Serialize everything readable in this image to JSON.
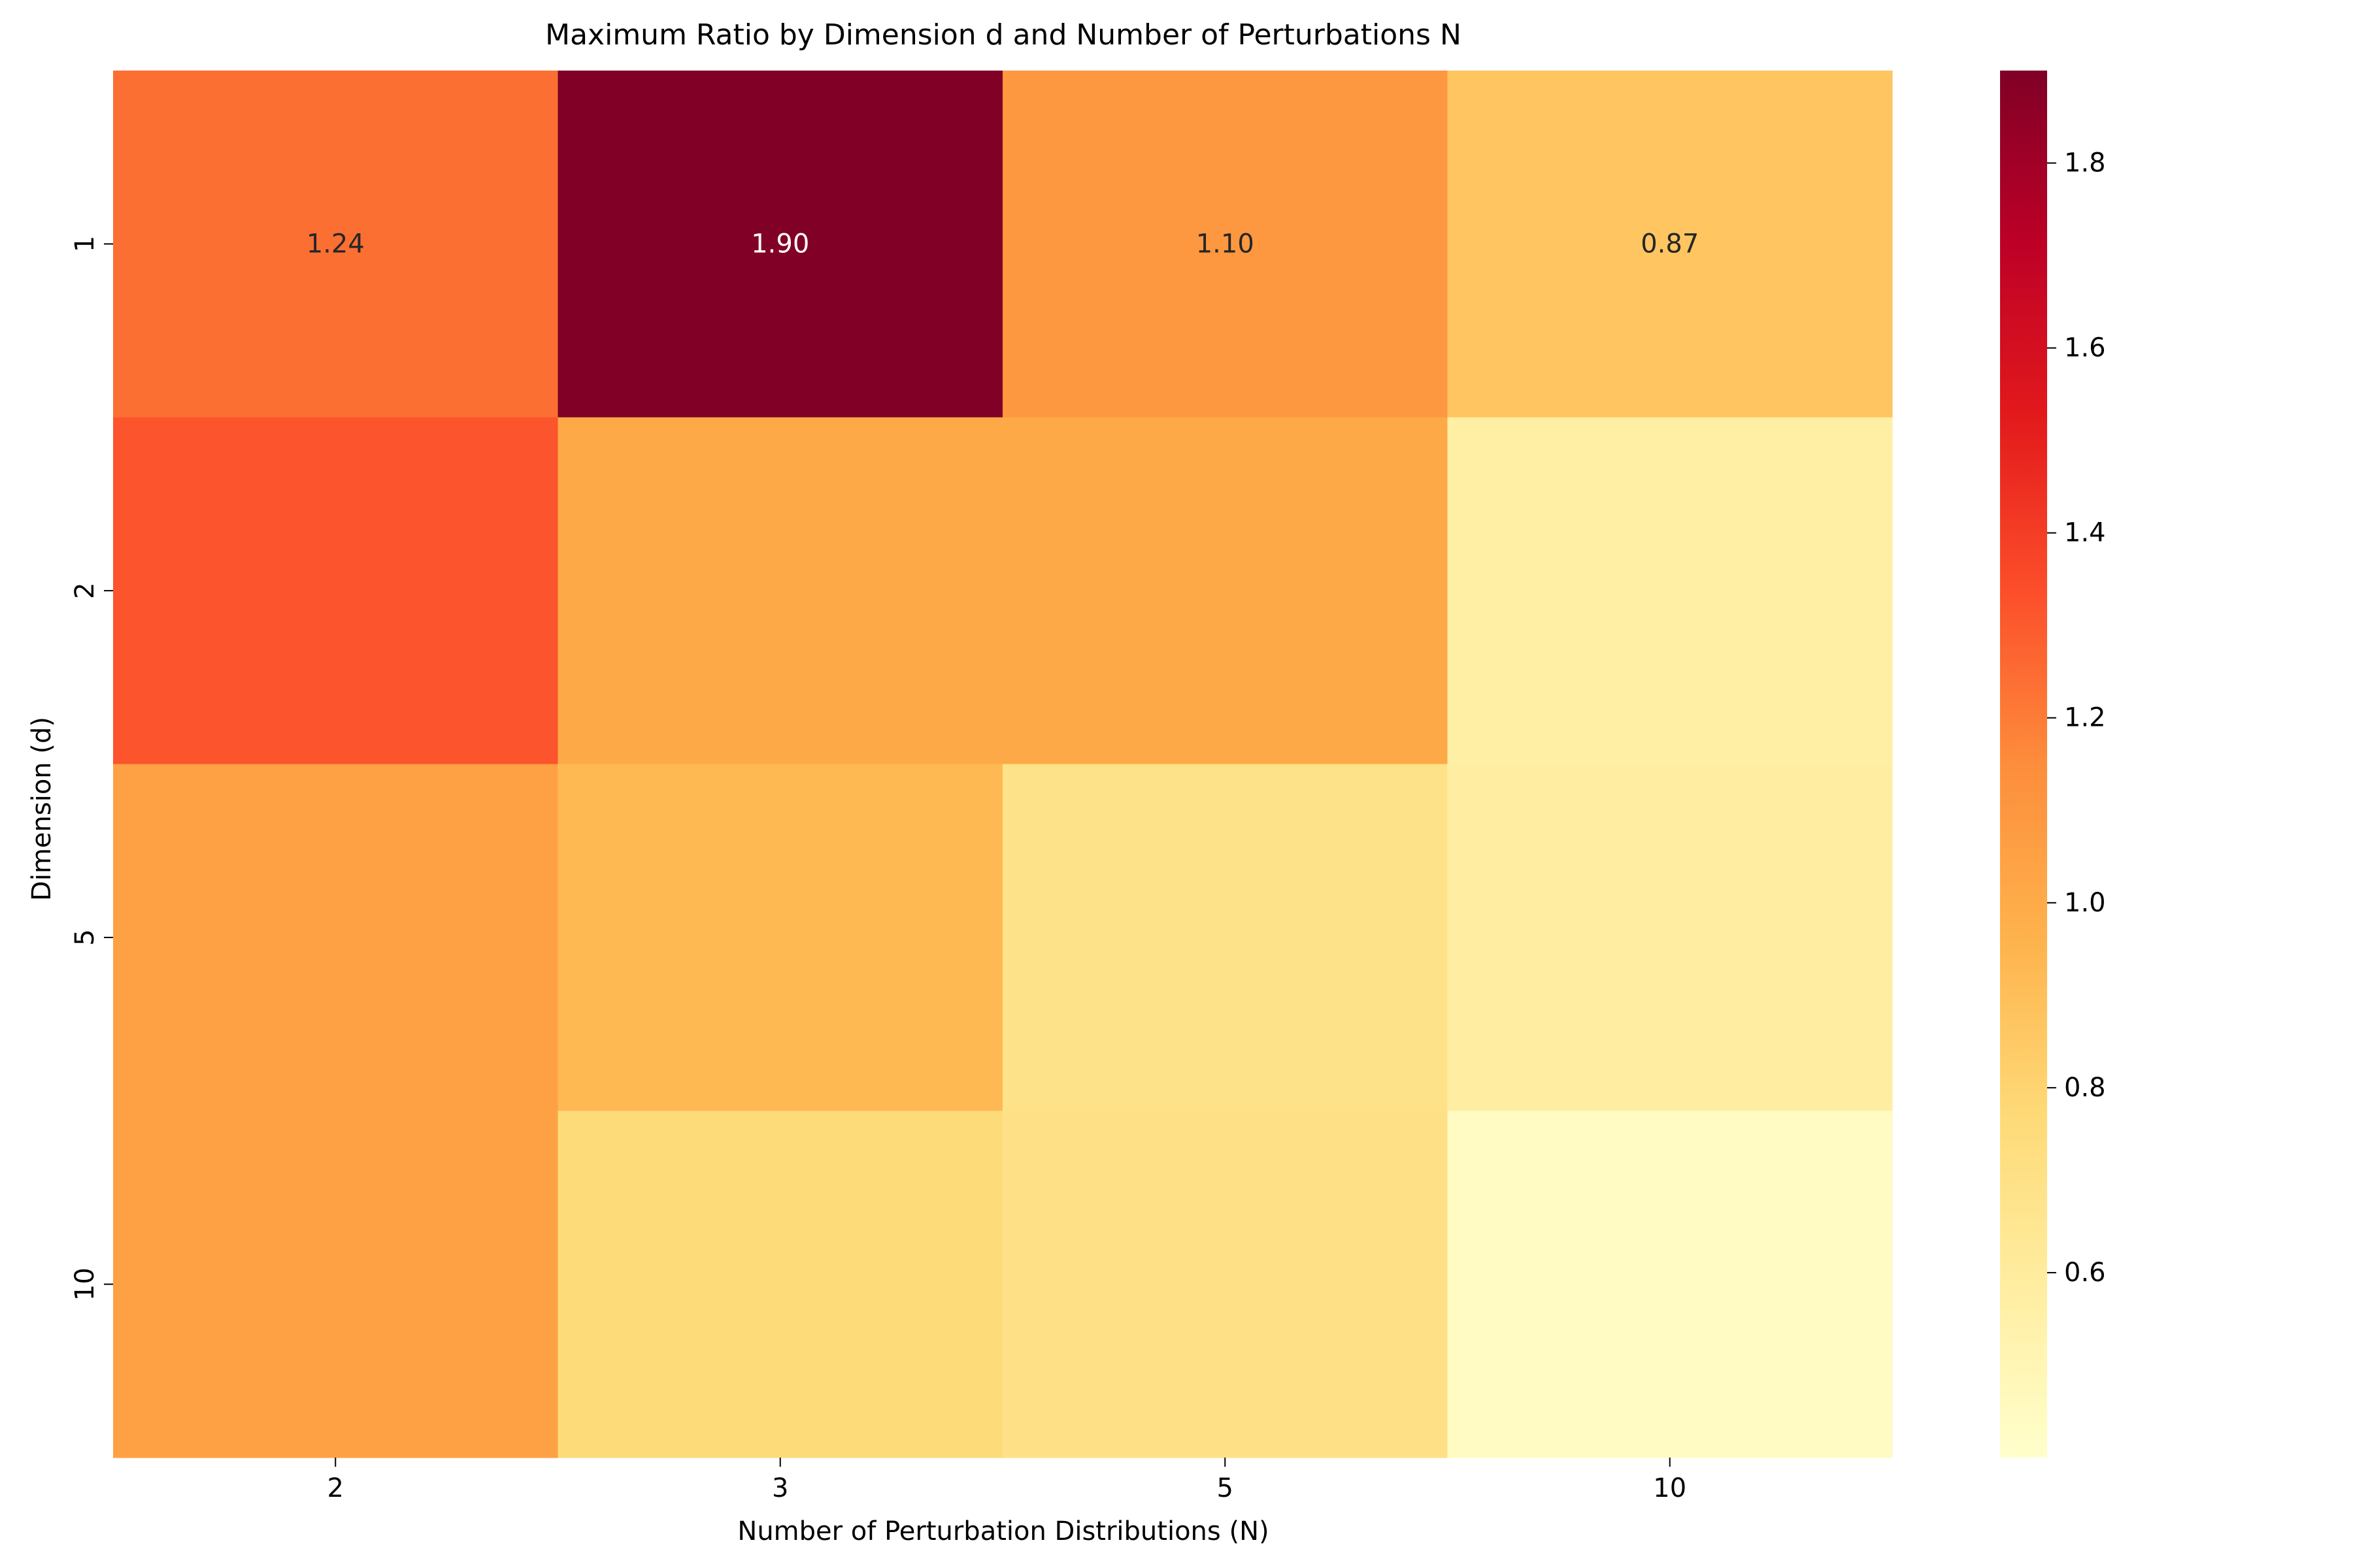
{
  "chart_data": {
    "type": "heatmap",
    "title": "Maximum Ratio by Dimension d and Number of Perturbations N",
    "xlabel": "Number of Perturbation Distributions (N)",
    "ylabel": "Dimension (d)",
    "x_categories": [
      "2",
      "3",
      "5",
      "10"
    ],
    "y_categories": [
      "1",
      "2",
      "5",
      "10"
    ],
    "values": [
      [
        1.24,
        1.9,
        1.1,
        0.87
      ],
      [
        1.32,
        1.01,
        1.01,
        0.57
      ],
      [
        1.05,
        0.93,
        0.69,
        0.58
      ],
      [
        1.05,
        0.76,
        0.7,
        0.44
      ]
    ],
    "annotations": [
      {
        "row": 0,
        "col": 0,
        "text": "1.24"
      },
      {
        "row": 0,
        "col": 1,
        "text": "1.90"
      },
      {
        "row": 0,
        "col": 2,
        "text": "1.10"
      },
      {
        "row": 0,
        "col": 3,
        "text": "0.87"
      }
    ],
    "colormap": "YlOrRd",
    "vmin": 0.4,
    "vmax": 1.9,
    "colorbar_ticks": [
      "0.6",
      "0.8",
      "1.0",
      "1.2",
      "1.4",
      "1.6",
      "1.8"
    ],
    "grid": false,
    "legend": "colorbar-right"
  }
}
